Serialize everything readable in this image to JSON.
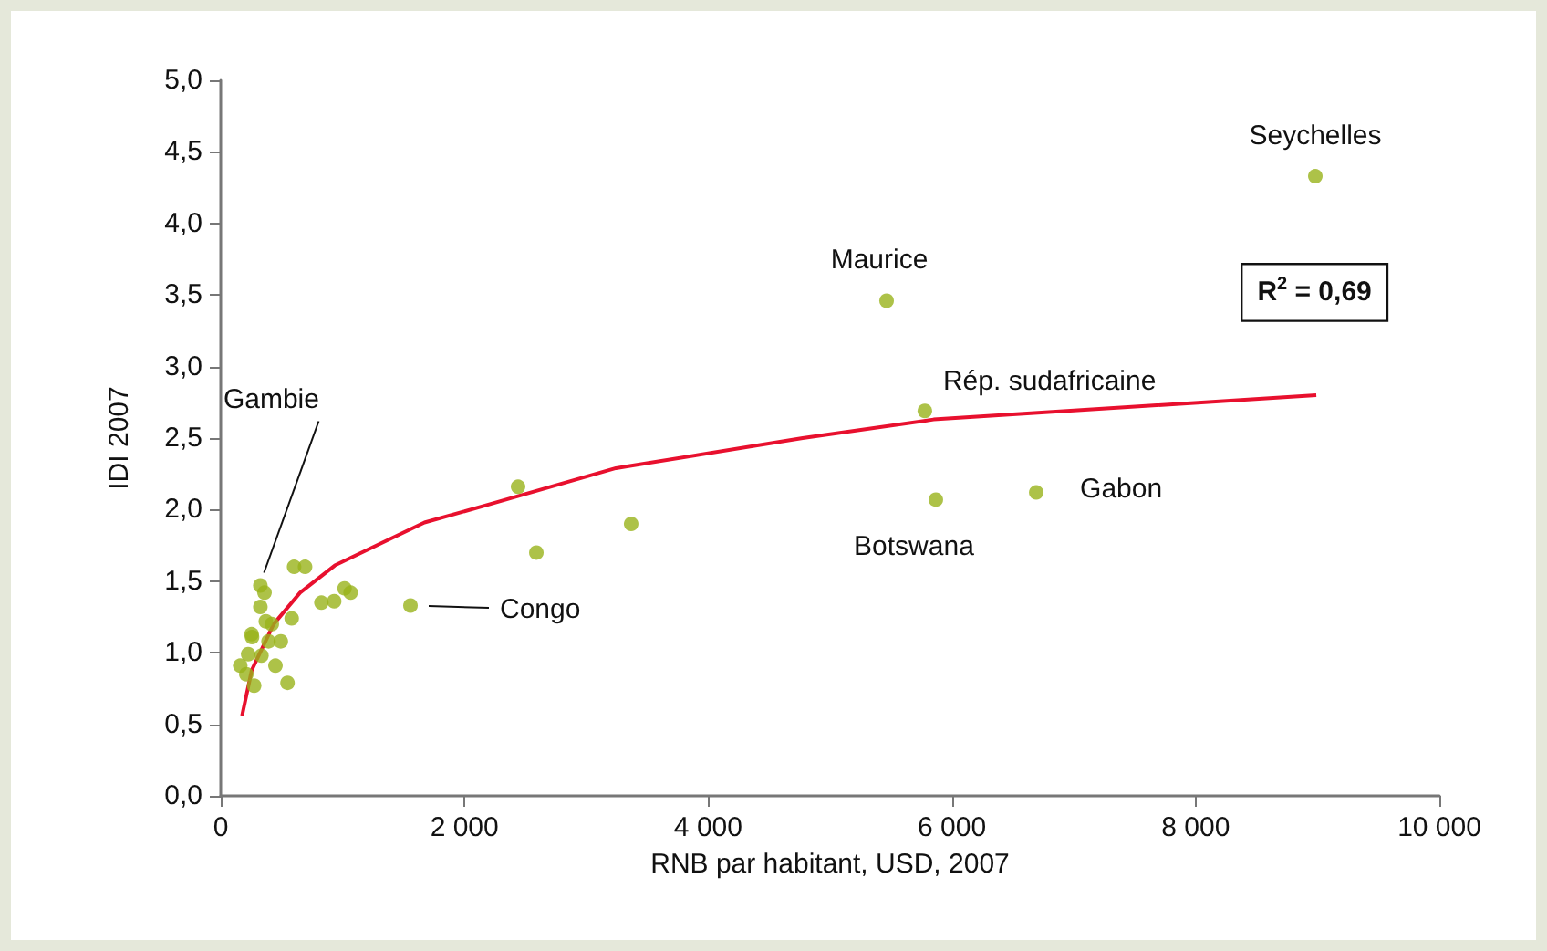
{
  "chart_data": {
    "type": "scatter",
    "xlabel": "RNB par habitant, USD, 2007",
    "ylabel": "IDI 2007",
    "xlim": [
      0,
      10000
    ],
    "xticks": [
      0,
      {
        "value": 2000,
        "label": "2 000"
      },
      {
        "value": 4000,
        "label": "4 000"
      },
      {
        "value": 6000,
        "label": "6 000"
      },
      {
        "value": 8000,
        "label": "8 000"
      },
      {
        "value": 10000,
        "label": "10 000"
      }
    ],
    "ylim": [
      0,
      5
    ],
    "yticks": [
      {
        "value": 0,
        "label": "0,0"
      },
      {
        "value": 0.5,
        "label": "0,5"
      },
      {
        "value": 1,
        "label": "1,0"
      },
      {
        "value": 1.5,
        "label": "1,5"
      },
      {
        "value": 2,
        "label": "2,0"
      },
      {
        "value": 2.5,
        "label": "2,5"
      },
      {
        "value": 3,
        "label": "3,0"
      },
      {
        "value": 3.5,
        "label": "3,5"
      },
      {
        "value": 4,
        "label": "4,0"
      },
      {
        "value": 4.5,
        "label": "4,5"
      },
      {
        "value": 5,
        "label": "5,0"
      }
    ],
    "grid": false,
    "marker": "circle",
    "series": [
      {
        "type": "scatter",
        "color": "#99b31a",
        "x": [
          8982,
          5464,
          5778,
          5868,
          6692,
          2440,
          2590,
          3368,
          1557,
          325,
          359,
          325,
          602,
          692,
          826,
          931,
          1016,
          1066,
          582,
          370,
          253,
          392,
          493,
          225,
          334,
          160,
          449,
          210,
          274,
          548,
          257,
          419
        ],
        "values": [
          4.33,
          3.46,
          2.69,
          2.07,
          2.12,
          2.16,
          1.7,
          1.9,
          1.33,
          1.47,
          1.42,
          1.32,
          1.6,
          1.6,
          1.35,
          1.36,
          1.45,
          1.42,
          1.24,
          1.22,
          1.13,
          1.08,
          1.08,
          0.99,
          0.98,
          0.91,
          0.91,
          0.85,
          0.77,
          0.79,
          1.11,
          1.2
        ]
      },
      {
        "type": "line",
        "color": "#e8102e",
        "marker": "none",
        "line_style": "solid",
        "x": [
          175,
          255,
          434,
          651,
          936,
          1672,
          2216,
          3243,
          4775,
          5850,
          8990
        ],
        "values": [
          0.56,
          0.88,
          1.2,
          1.42,
          1.61,
          1.91,
          2.04,
          2.29,
          2.5,
          2.63,
          2.8
        ]
      }
    ],
    "annotations": [
      {
        "text": "Seychelles",
        "x": 8982,
        "y": 4.33
      },
      {
        "text": "Maurice",
        "x": 5464,
        "y": 3.46
      },
      {
        "text": "Rép. sudafricaine",
        "x": 5778,
        "y": 2.69
      },
      {
        "text": "Botswana",
        "x": 5868,
        "y": 2.07
      },
      {
        "text": "Gabon",
        "x": 6692,
        "y": 2.12
      },
      "Congo",
      {
        "text": "Gambie",
        "x": 325,
        "y": 1.47
      },
      "R$^{2}$ = 0,69"
    ]
  }
}
